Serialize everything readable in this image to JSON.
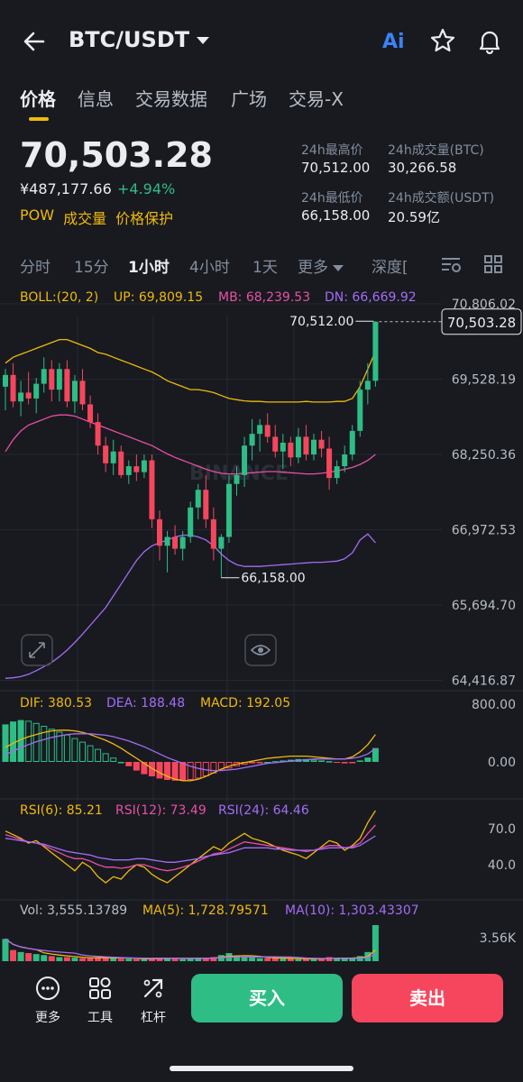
{
  "header": {
    "pair": "BTC/USDT",
    "ai_label": "Ai"
  },
  "tabs": [
    "价格",
    "信息",
    "交易数据",
    "广场",
    "交易-X"
  ],
  "ticker": {
    "last_price": "70,503.28",
    "cny_price": "¥487,177.66",
    "change_pct": "+4.94%",
    "tags": [
      "POW",
      "成交量",
      "价格保护"
    ],
    "high_label": "24h最高价",
    "high_value": "70,512.00",
    "vol_btc_label": "24h成交量(BTC)",
    "vol_btc_value": "30,266.58",
    "low_label": "24h最低价",
    "low_value": "66,158.00",
    "vol_usdt_label": "24h成交额(USDT)",
    "vol_usdt_value": "20.59亿"
  },
  "periods": [
    "分时",
    "15分",
    "1小时",
    "4小时",
    "1天",
    "更多",
    "深度["
  ],
  "active_period": "1小时",
  "indicators": {
    "boll": "BOLL:(20, 2)",
    "up": "UP: 69,809.15",
    "mb": "MB: 68,239.53",
    "dn": "DN: 66,669.92",
    "dif": "DIF: 380.53",
    "dea": "DEA: 188.48",
    "macd": "MACD: 192.05",
    "rsi6": "RSI(6): 85.21",
    "rsi12": "RSI(12): 73.49",
    "rsi24": "RSI(24): 64.46",
    "vol": "Vol: 3,555.13789",
    "ma5": "MA(5): 1,728.79571",
    "ma10": "MA(10): 1,303.43307"
  },
  "colors": {
    "up": "#2ebd85",
    "down": "#f6465d",
    "accent": "#f0b90b",
    "mb": "#e94fa5",
    "dn": "#a46cf5"
  },
  "bottom": {
    "more": "更多",
    "tools": "工具",
    "leverage": "杠杆",
    "buy": "买入",
    "sell": "卖出"
  },
  "chart_data": {
    "type": "candlestick",
    "title": "",
    "price_axis_ticks": [
      "70,806.02",
      "69,528.19",
      "68,250.36",
      "66,972.53",
      "65,694.70",
      "64,416.87"
    ],
    "price_axis_values": [
      70806.02,
      69528.19,
      68250.36,
      66972.53,
      65694.7,
      64416.87
    ],
    "current_price_label": "70,503.28",
    "current_price": 70503.28,
    "high_annotation": "70,512.00",
    "high_value": 70512.0,
    "low_annotation": "66,158.00",
    "low_value": 66158.0,
    "macd_ticks": [
      "800.00",
      "0.00"
    ],
    "rsi_ticks": [
      "70.0",
      "40.0"
    ],
    "vol_ticks": [
      "3.56K"
    ],
    "watermark": "BINANCE",
    "candles": [
      {
        "o": 69400,
        "h": 69700,
        "l": 69000,
        "c": 69600
      },
      {
        "o": 69600,
        "h": 69800,
        "l": 69050,
        "c": 69150
      },
      {
        "o": 69150,
        "h": 69500,
        "l": 68900,
        "c": 69300
      },
      {
        "o": 69300,
        "h": 69650,
        "l": 69100,
        "c": 69200
      },
      {
        "o": 69200,
        "h": 69550,
        "l": 68950,
        "c": 69450
      },
      {
        "o": 69450,
        "h": 69900,
        "l": 69300,
        "c": 69700
      },
      {
        "o": 69700,
        "h": 69850,
        "l": 69150,
        "c": 69350
      },
      {
        "o": 69350,
        "h": 69800,
        "l": 69150,
        "c": 69700
      },
      {
        "o": 69700,
        "h": 69850,
        "l": 69050,
        "c": 69150
      },
      {
        "o": 69150,
        "h": 69600,
        "l": 68950,
        "c": 69500
      },
      {
        "o": 69500,
        "h": 69700,
        "l": 69000,
        "c": 69100
      },
      {
        "o": 69100,
        "h": 69250,
        "l": 68700,
        "c": 68800
      },
      {
        "o": 68800,
        "h": 68950,
        "l": 68250,
        "c": 68400
      },
      {
        "o": 68400,
        "h": 68550,
        "l": 67950,
        "c": 68100
      },
      {
        "o": 68100,
        "h": 68500,
        "l": 67900,
        "c": 68300
      },
      {
        "o": 68300,
        "h": 68400,
        "l": 67850,
        "c": 67900
      },
      {
        "o": 67900,
        "h": 68150,
        "l": 67750,
        "c": 68050
      },
      {
        "o": 68050,
        "h": 68250,
        "l": 67800,
        "c": 67950
      },
      {
        "o": 67950,
        "h": 68250,
        "l": 67850,
        "c": 68150
      },
      {
        "o": 68150,
        "h": 68250,
        "l": 67000,
        "c": 67150
      },
      {
        "o": 67150,
        "h": 67300,
        "l": 66450,
        "c": 66700
      },
      {
        "o": 66700,
        "h": 66950,
        "l": 66250,
        "c": 66850
      },
      {
        "o": 66850,
        "h": 67050,
        "l": 66550,
        "c": 66650
      },
      {
        "o": 66650,
        "h": 66950,
        "l": 66450,
        "c": 66850
      },
      {
        "o": 66850,
        "h": 67450,
        "l": 66750,
        "c": 67350
      },
      {
        "o": 67350,
        "h": 67750,
        "l": 67150,
        "c": 67650
      },
      {
        "o": 67650,
        "h": 67900,
        "l": 67000,
        "c": 67150
      },
      {
        "o": 67150,
        "h": 67350,
        "l": 66450,
        "c": 66650
      },
      {
        "o": 66650,
        "h": 66900,
        "l": 66158,
        "c": 66850
      },
      {
        "o": 66850,
        "h": 67900,
        "l": 66750,
        "c": 67750
      },
      {
        "o": 67750,
        "h": 68050,
        "l": 67550,
        "c": 67900
      },
      {
        "o": 67900,
        "h": 68550,
        "l": 67700,
        "c": 68400
      },
      {
        "o": 68400,
        "h": 68850,
        "l": 68150,
        "c": 68600
      },
      {
        "o": 68600,
        "h": 68850,
        "l": 68300,
        "c": 68750
      },
      {
        "o": 68750,
        "h": 68950,
        "l": 68450,
        "c": 68550
      },
      {
        "o": 68550,
        "h": 68750,
        "l": 68200,
        "c": 68300
      },
      {
        "o": 68300,
        "h": 68600,
        "l": 68000,
        "c": 68450
      },
      {
        "o": 68450,
        "h": 68550,
        "l": 68050,
        "c": 68200
      },
      {
        "o": 68200,
        "h": 68700,
        "l": 68100,
        "c": 68550
      },
      {
        "o": 68550,
        "h": 68750,
        "l": 68150,
        "c": 68250
      },
      {
        "o": 68250,
        "h": 68600,
        "l": 68150,
        "c": 68500
      },
      {
        "o": 68500,
        "h": 68650,
        "l": 68200,
        "c": 68350
      },
      {
        "o": 68350,
        "h": 68550,
        "l": 67650,
        "c": 67850
      },
      {
        "o": 67850,
        "h": 68150,
        "l": 67750,
        "c": 68050
      },
      {
        "o": 68050,
        "h": 68400,
        "l": 67950,
        "c": 68250
      },
      {
        "o": 68250,
        "h": 68750,
        "l": 68150,
        "c": 68650
      },
      {
        "o": 68650,
        "h": 69500,
        "l": 68550,
        "c": 69350
      },
      {
        "o": 69350,
        "h": 69800,
        "l": 69100,
        "c": 69500
      },
      {
        "o": 69500,
        "h": 70512,
        "l": 69400,
        "c": 70503.28
      }
    ],
    "boll_up": [
      69800,
      69900,
      69950,
      70000,
      70050,
      70100,
      70150,
      70200,
      70200,
      70150,
      70100,
      70050,
      69980,
      69950,
      69900,
      69850,
      69800,
      69750,
      69700,
      69650,
      69580,
      69500,
      69450,
      69400,
      69350,
      69350,
      69330,
      69300,
      69250,
      69200,
      69180,
      69160,
      69150,
      69150,
      69140,
      69140,
      69140,
      69140,
      69140,
      69150,
      69140,
      69140,
      69140,
      69150,
      69150,
      69200,
      69400,
      69700,
      70000
    ],
    "boll_mb": [
      68300,
      68500,
      68650,
      68750,
      68800,
      68850,
      68900,
      68920,
      68920,
      68900,
      68850,
      68800,
      68750,
      68700,
      68650,
      68600,
      68550,
      68500,
      68450,
      68400,
      68330,
      68260,
      68200,
      68150,
      68100,
      68050,
      68000,
      67960,
      67930,
      67920,
      67920,
      67930,
      67940,
      67950,
      67960,
      67960,
      67950,
      67940,
      67930,
      67920,
      67920,
      67930,
      67950,
      67970,
      68000,
      68030,
      68080,
      68150,
      68250
    ],
    "boll_dn": [
      64450,
      64460,
      64480,
      64520,
      64580,
      64650,
      64720,
      64820,
      64930,
      65060,
      65200,
      65350,
      65500,
      65650,
      65850,
      66050,
      66250,
      66450,
      66600,
      66700,
      66750,
      66800,
      66850,
      66880,
      66880,
      66850,
      66800,
      66700,
      66560,
      66450,
      66380,
      66350,
      66350,
      66350,
      66360,
      66370,
      66380,
      66390,
      66400,
      66410,
      66420,
      66420,
      66430,
      66440,
      66480,
      66580,
      66800,
      66900,
      66750
    ],
    "macd_hist": [
      520,
      560,
      580,
      570,
      540,
      500,
      460,
      420,
      380,
      330,
      280,
      230,
      180,
      120,
      60,
      0,
      -60,
      -120,
      -170,
      -200,
      -230,
      -250,
      -260,
      -260,
      -250,
      -230,
      -200,
      -160,
      -120,
      -90,
      -60,
      -40,
      -20,
      -10,
      0,
      10,
      20,
      30,
      40,
      40,
      30,
      20,
      10,
      -10,
      -20,
      -10,
      20,
      60,
      192
    ],
    "macd_dif": [
      200,
      260,
      310,
      350,
      380,
      410,
      430,
      440,
      440,
      430,
      410,
      380,
      340,
      300,
      250,
      190,
      120,
      50,
      -20,
      -90,
      -150,
      -200,
      -240,
      -260,
      -260,
      -240,
      -200,
      -150,
      -100,
      -60,
      -30,
      -10,
      10,
      30,
      50,
      60,
      70,
      80,
      80,
      80,
      70,
      60,
      50,
      40,
      40,
      70,
      140,
      240,
      380
    ],
    "macd_dea": [
      100,
      150,
      200,
      240,
      280,
      310,
      340,
      360,
      380,
      390,
      390,
      390,
      380,
      370,
      350,
      320,
      290,
      250,
      210,
      160,
      110,
      60,
      20,
      -20,
      -60,
      -90,
      -110,
      -120,
      -120,
      -110,
      -100,
      -80,
      -60,
      -40,
      -20,
      -10,
      0,
      10,
      20,
      30,
      40,
      40,
      40,
      40,
      40,
      50,
      70,
      110,
      188
    ],
    "rsi6": [
      68,
      65,
      62,
      58,
      60,
      55,
      50,
      45,
      40,
      35,
      42,
      38,
      30,
      25,
      30,
      28,
      35,
      40,
      38,
      32,
      28,
      25,
      30,
      35,
      40,
      45,
      50,
      55,
      52,
      58,
      62,
      66,
      62,
      60,
      58,
      55,
      52,
      50,
      48,
      45,
      50,
      55,
      60,
      58,
      52,
      56,
      62,
      75,
      85
    ],
    "rsi12": [
      65,
      63,
      61,
      59,
      58,
      56,
      53,
      50,
      47,
      45,
      45,
      43,
      40,
      38,
      38,
      37,
      38,
      40,
      40,
      38,
      36,
      35,
      36,
      38,
      40,
      43,
      46,
      49,
      50,
      53,
      56,
      59,
      58,
      57,
      56,
      55,
      54,
      53,
      52,
      51,
      52,
      54,
      56,
      56,
      54,
      55,
      58,
      66,
      73
    ],
    "rsi24": [
      62,
      61,
      60,
      59,
      58,
      57,
      55,
      53,
      51,
      50,
      49,
      48,
      46,
      45,
      44,
      44,
      44,
      45,
      45,
      44,
      43,
      42,
      42,
      43,
      44,
      45,
      47,
      48,
      49,
      50,
      52,
      54,
      54,
      54,
      54,
      53,
      53,
      52,
      52,
      52,
      52,
      53,
      54,
      54,
      54,
      54,
      56,
      60,
      64
    ],
    "volume": [
      2200,
      1100,
      900,
      800,
      700,
      600,
      500,
      400,
      400,
      350,
      300,
      300,
      350,
      400,
      300,
      250,
      250,
      200,
      200,
      300,
      350,
      300,
      250,
      200,
      300,
      350,
      300,
      400,
      600,
      800,
      500,
      400,
      350,
      300,
      300,
      300,
      250,
      250,
      200,
      250,
      200,
      300,
      400,
      300,
      250,
      300,
      500,
      900,
      3555
    ]
  }
}
